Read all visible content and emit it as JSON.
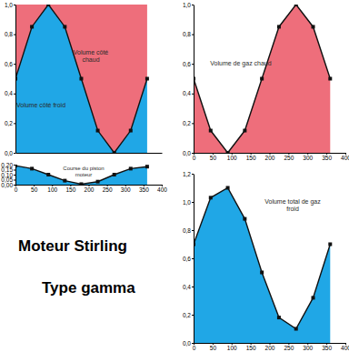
{
  "texts": [
    "Moteur Stirling",
    "Type gamma"
  ],
  "chart_data": [
    {
      "type": "area",
      "stacked": true,
      "tick_labels": "y",
      "x": [
        0,
        45,
        90,
        135,
        180,
        225,
        270,
        315,
        360
      ],
      "xlim": [
        0,
        400
      ],
      "ylim": [
        0,
        1
      ],
      "yticks": [
        {
          "value": 0,
          "label": "0,0"
        },
        {
          "value": 0.2,
          "label": "0,2"
        },
        {
          "value": 0.4,
          "label": "0,4"
        },
        {
          "value": 0.6,
          "label": "0,6"
        },
        {
          "value": 0.8,
          "label": "0,8"
        },
        {
          "value": 1,
          "label": "1,0"
        }
      ],
      "series": [
        {
          "name": "Volume côté froid",
          "color": "#20a7e6",
          "marker": "square",
          "values": [
            0.5,
            0.85,
            1.0,
            0.85,
            0.5,
            0.15,
            0.0,
            0.15,
            0.5
          ]
        },
        {
          "name": "Volume côté chaud",
          "color": "#ee6e7b",
          "values": [
            0.5,
            0.15,
            0.0,
            0.15,
            0.5,
            0.85,
            1.0,
            0.85,
            0.5
          ]
        }
      ]
    },
    {
      "type": "area",
      "x": [
        0,
        45,
        90,
        135,
        180,
        225,
        270,
        315,
        360
      ],
      "xlim": [
        0,
        400
      ],
      "xticks": [
        0,
        50,
        100,
        150,
        200,
        250,
        300,
        350,
        400
      ],
      "ylim": [
        0,
        0.2
      ],
      "yticks": [
        {
          "value": 0,
          "label": "0,00"
        },
        {
          "value": 0.05,
          "label": "0,05"
        },
        {
          "value": 0.1,
          "label": "0,10"
        },
        {
          "value": 0.15,
          "label": "0,15"
        },
        {
          "value": 0.2,
          "label": "0,20"
        }
      ],
      "series": [
        {
          "name": "Course du piston moteur",
          "color": "#20a7e6",
          "marker": "square",
          "values": [
            0.19,
            0.16,
            0.1,
            0.04,
            0.005,
            0.03,
            0.1,
            0.16,
            0.18
          ]
        }
      ]
    },
    {
      "type": "area",
      "x": [
        0,
        45,
        90,
        135,
        180,
        225,
        270,
        315,
        360
      ],
      "xlim": [
        0,
        400
      ],
      "xticks": [
        0,
        50,
        100,
        150,
        200,
        250,
        300,
        350,
        400
      ],
      "ylim": [
        0,
        1
      ],
      "yticks": [
        {
          "value": 0,
          "label": "0,0"
        },
        {
          "value": 0.2,
          "label": "0,2"
        },
        {
          "value": 0.4,
          "label": "0,4"
        },
        {
          "value": 0.6,
          "label": "0,6"
        },
        {
          "value": 0.8,
          "label": "0,8"
        },
        {
          "value": 1,
          "label": "1,0"
        }
      ],
      "series": [
        {
          "name": "Volume de gaz chaud",
          "color": "#ee6e7b",
          "marker": "square",
          "values": [
            0.5,
            0.15,
            0.0,
            0.15,
            0.5,
            0.85,
            1.0,
            0.85,
            0.5
          ]
        }
      ]
    },
    {
      "type": "area",
      "x": [
        0,
        45,
        90,
        135,
        180,
        225,
        270,
        315,
        360
      ],
      "xlim": [
        0,
        400
      ],
      "xticks": [
        0,
        50,
        100,
        150,
        200,
        250,
        300,
        350,
        400
      ],
      "ylim": [
        0,
        1.2
      ],
      "yticks": [
        {
          "value": 0,
          "label": "0,0"
        },
        {
          "value": 0.2,
          "label": "0,2"
        },
        {
          "value": 0.4,
          "label": "0,4"
        },
        {
          "value": 0.6,
          "label": "0,6"
        },
        {
          "value": 0.8,
          "label": "0,8"
        },
        {
          "value": 1,
          "label": "1,0"
        },
        {
          "value": 1.2,
          "label": "1,2"
        }
      ],
      "series": [
        {
          "name": "Volume total de gaz froid",
          "color": "#20a7e6",
          "marker": "square",
          "values": [
            0.7,
            1.03,
            1.1,
            0.88,
            0.5,
            0.18,
            0.1,
            0.32,
            0.7
          ]
        }
      ]
    }
  ]
}
